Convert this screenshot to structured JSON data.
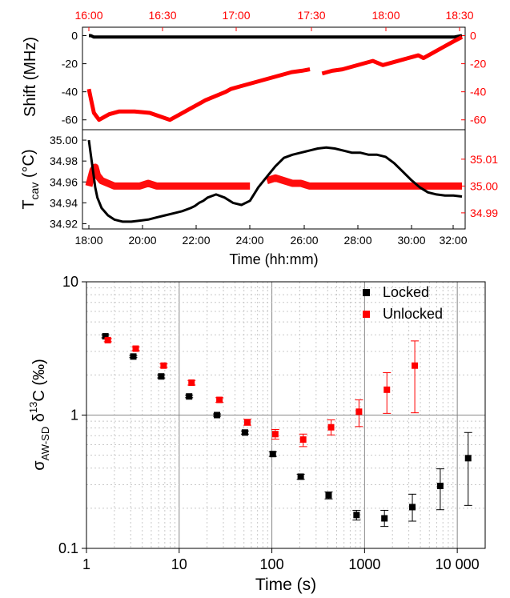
{
  "chart_data": [
    {
      "type": "line",
      "panel": "top",
      "ylabel": "Shift (MHz)",
      "x_ticks_top": [
        "16:00",
        "16:30",
        "17:00",
        "17:30",
        "18:00",
        "18:30"
      ],
      "yticks_left": [
        "0",
        "-20",
        "-40",
        "-60"
      ],
      "yticks_right": [
        "0",
        "-20",
        "-40",
        "-60"
      ],
      "ylim": [
        -67,
        6
      ],
      "colors": {
        "locked": "#000000",
        "unlocked": "#ff0000",
        "top_axis": "#ff0000",
        "right_axis": "#ff0000"
      },
      "x_minutes": [
        0,
        2,
        5,
        10,
        20,
        30,
        45,
        60,
        80,
        90,
        100,
        105,
        115,
        125,
        135,
        140,
        150,
        160,
        170,
        180,
        190,
        200,
        210,
        218,
        220,
        230,
        240,
        250,
        260,
        270,
        280,
        290,
        300,
        310,
        320,
        325,
        330,
        340,
        350,
        360,
        368
      ],
      "series": [
        {
          "key": "locked",
          "values": [
            0,
            0,
            -1,
            -1,
            -1,
            -1,
            -1,
            -1,
            -1,
            -1,
            -1,
            -1,
            -1,
            -1,
            -1,
            -1,
            -1,
            -1,
            -1,
            -1,
            -1,
            -1,
            -1,
            -1,
            -1,
            -1,
            -1,
            -1,
            -1,
            -1,
            -1,
            -1,
            -1,
            -1,
            -1,
            -1,
            -1,
            -1,
            -1,
            -1,
            0
          ]
        },
        {
          "key": "unlocked",
          "values": [
            -38,
            -45,
            -55,
            -60,
            -56,
            -54,
            -54,
            -55,
            -60,
            -56,
            -52,
            -50,
            -46,
            -43,
            -40,
            -38,
            -36,
            -34,
            -32,
            -30,
            -28,
            -26,
            -25,
            -24,
            null,
            -27,
            -25,
            -24,
            -22,
            -20,
            -18,
            -21,
            -19,
            -17,
            -15,
            -14,
            -16,
            -12,
            -8,
            -4,
            -1
          ]
        }
      ]
    },
    {
      "type": "line",
      "panel": "middle",
      "ylabel_main": "T",
      "ylabel_sub": "cav",
      "ylabel_unit": " (°C)",
      "xlabel": "Time (hh:mm)",
      "xticks": [
        "18:00",
        "20:00",
        "22:00",
        "24:00",
        "26:00",
        "28:00",
        "30:00",
        "32:00"
      ],
      "yticks_left": [
        "35.00",
        "34.98",
        "34.96",
        "34.94",
        "34.92"
      ],
      "yticks_right": [
        "35.01",
        "35.00",
        "34.99"
      ],
      "x_minutes": [
        0,
        5,
        10,
        15,
        20,
        30,
        45,
        60,
        80,
        100,
        120,
        140,
        160,
        180,
        200,
        220,
        240,
        250,
        260,
        270,
        280,
        300,
        320,
        340,
        360,
        380,
        400,
        420,
        440,
        460,
        480,
        500,
        520,
        540,
        560,
        580,
        600,
        620,
        640,
        660,
        680,
        700,
        720,
        740,
        760,
        780,
        800,
        820,
        840,
        860,
        880
      ],
      "series": [
        {
          "key": "locked",
          "axis": "left",
          "ylim": [
            34.915,
            35.01
          ],
          "values": [
            35.0,
            34.985,
            34.97,
            34.955,
            34.945,
            34.935,
            34.928,
            34.924,
            34.922,
            34.922,
            34.923,
            34.924,
            34.926,
            34.928,
            34.93,
            34.932,
            34.935,
            34.937,
            34.94,
            34.942,
            34.945,
            34.948,
            34.945,
            34.94,
            34.938,
            34.942,
            34.955,
            34.965,
            34.975,
            34.983,
            34.986,
            34.988,
            34.99,
            34.992,
            34.993,
            34.992,
            34.99,
            34.988,
            34.988,
            34.986,
            34.986,
            34.984,
            34.978,
            34.97,
            34.962,
            34.955,
            34.95,
            34.948,
            34.947,
            34.947,
            34.946
          ]
        },
        {
          "key": "unlocked",
          "axis": "right",
          "ylim": [
            34.984,
            35.021
          ],
          "values": [
            35.0,
            35.003,
            35.006,
            35.007,
            35.004,
            35.002,
            35.001,
            35.0,
            35.0,
            35.0,
            35.0,
            35.001,
            35.0,
            35.0,
            35.0,
            35.0,
            35.0,
            35.0,
            35.0,
            35.0,
            35.0,
            35.0,
            35.0,
            35.0,
            35.0,
            35.0,
            null,
            35.002,
            35.003,
            35.002,
            35.001,
            35.001,
            35.0,
            35.0,
            35.0,
            35.0,
            35.0,
            35.0,
            35.0,
            35.0,
            35.0,
            35.0,
            35.0,
            35.0,
            35.0,
            35.0,
            35.0,
            35.0,
            35.0,
            35.0,
            35.0
          ]
        }
      ]
    },
    {
      "type": "scatter",
      "panel": "bottom",
      "xlabel": "Time (s)",
      "ylabel_prefix": "σ",
      "ylabel_sub": "AW-SD",
      "ylabel_mid": " δ",
      "ylabel_sup": "13",
      "ylabel_suffix": "C (‰)",
      "xscale": "log",
      "yscale": "log",
      "xlim": [
        1,
        20000
      ],
      "ylim": [
        0.1,
        10
      ],
      "xticks": [
        "1",
        "10",
        "100",
        "1000",
        "10 000"
      ],
      "yticks": [
        "10",
        "1",
        "0.1"
      ],
      "grid": true,
      "legend": {
        "position": "top-right",
        "entries": [
          "Locked",
          "Unlocked"
        ]
      },
      "series": [
        {
          "name": "Locked",
          "color": "#000000",
          "x": [
            1.6,
            3.2,
            6.4,
            12.8,
            25.6,
            51.2,
            102.4,
            204.8,
            409.6,
            819.2,
            1638.4,
            3276.8,
            6553.6,
            13107.2
          ],
          "y": [
            3.9,
            2.75,
            1.95,
            1.38,
            1.0,
            0.74,
            0.51,
            0.345,
            0.25,
            0.178,
            0.168,
            0.204,
            0.294,
            0.475
          ],
          "err_low": [
            3.8,
            2.7,
            1.9,
            1.35,
            0.98,
            0.72,
            0.49,
            0.33,
            0.235,
            0.163,
            0.146,
            0.16,
            0.195,
            0.21
          ],
          "err_high": [
            4.0,
            2.8,
            2.0,
            1.41,
            1.02,
            0.76,
            0.53,
            0.36,
            0.265,
            0.193,
            0.193,
            0.255,
            0.395,
            0.74
          ]
        },
        {
          "name": "Unlocked",
          "color": "#ff0000",
          "x": [
            1.7,
            3.4,
            6.8,
            13.6,
            27.2,
            54.4,
            108.8,
            217.6,
            435.2,
            870.4,
            1740.8,
            3481.6
          ],
          "y": [
            3.65,
            3.15,
            2.35,
            1.75,
            1.3,
            0.88,
            0.72,
            0.655,
            0.81,
            1.06,
            1.55,
            2.35
          ],
          "err_low": [
            3.55,
            3.05,
            2.28,
            1.68,
            1.25,
            0.84,
            0.66,
            0.58,
            0.71,
            0.82,
            1.03,
            1.04
          ],
          "err_high": [
            3.75,
            3.25,
            2.42,
            1.82,
            1.35,
            0.93,
            0.78,
            0.72,
            0.92,
            1.3,
            2.08,
            3.6
          ]
        }
      ]
    }
  ]
}
